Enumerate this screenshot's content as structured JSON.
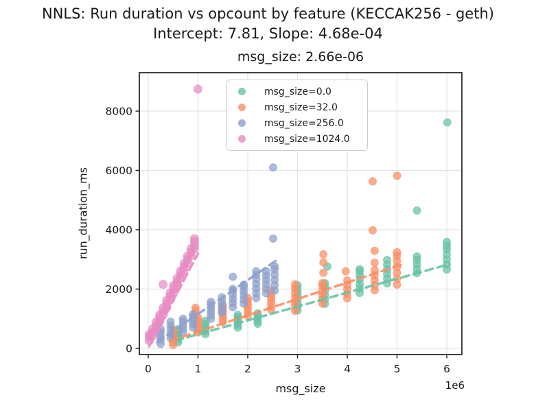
{
  "figure": {
    "suptitle_line1": "NNLS: Run duration vs opcount by feature (KECCAK256 - geth)",
    "suptitle_line2": "Intercept: 7.81, Slope: 4.68e-04",
    "axes_title": "msg_size: 2.66e-06",
    "xlabel": "msg_size",
    "ylabel": "run_duration_ms",
    "x_offset_label": "1e6",
    "background": "#ffffff",
    "grid_color": "#e3e3e3",
    "spine_color": "#2b2b2b"
  },
  "chart_data": {
    "type": "scatter",
    "title": "msg_size: 2.66e-06",
    "suptitle": "NNLS: Run duration vs opcount by feature (KECCAK256 - geth)",
    "subtitle": "Intercept: 7.81, Slope: 4.68e-04",
    "xlabel": "msg_size",
    "ylabel": "run_duration_ms",
    "x_scale_multiplier_label": "1e6",
    "grid": true,
    "legend_position": "upper-center-inside",
    "xlim": [
      -179000,
      6303000
    ],
    "ylim": [
      -208,
      9295
    ],
    "x_ticks": [
      0,
      1000000,
      2000000,
      3000000,
      4000000,
      5000000,
      6000000
    ],
    "x_tick_labels": [
      "0",
      "1",
      "2",
      "3",
      "4",
      "5",
      "6"
    ],
    "y_ticks": [
      0,
      2000,
      4000,
      6000,
      8000
    ],
    "y_tick_labels": [
      "0",
      "2000",
      "4000",
      "6000",
      "8000"
    ],
    "series": [
      {
        "name": "msg_size=0.0",
        "color": "#66c2a5",
        "marker_radius": 5.5,
        "trend": {
          "x": [
            550000,
            6050000
          ],
          "y": [
            265,
            2839
          ]
        },
        "points": [
          [
            600000,
            200
          ],
          [
            600000,
            290
          ],
          [
            600000,
            380
          ],
          [
            600000,
            470
          ],
          [
            600000,
            560
          ],
          [
            600000,
            650
          ],
          [
            1150000,
            480
          ],
          [
            1150000,
            570
          ],
          [
            1150000,
            660
          ],
          [
            1150000,
            750
          ],
          [
            1150000,
            840
          ],
          [
            1150000,
            930
          ],
          [
            1800000,
            700
          ],
          [
            1800000,
            790
          ],
          [
            1800000,
            880
          ],
          [
            1800000,
            970
          ],
          [
            1800000,
            1060
          ],
          [
            1800000,
            1130
          ],
          [
            2200000,
            830
          ],
          [
            2200000,
            920
          ],
          [
            2200000,
            1010
          ],
          [
            2200000,
            1100
          ],
          [
            2200000,
            1180
          ],
          [
            3000000,
            1280
          ],
          [
            3000000,
            1400
          ],
          [
            3000000,
            1520
          ],
          [
            3000000,
            1650
          ],
          [
            3000000,
            1780
          ],
          [
            3000000,
            1900
          ],
          [
            3000000,
            2020
          ],
          [
            3000000,
            2130
          ],
          [
            3550000,
            1500
          ],
          [
            3550000,
            1650
          ],
          [
            3550000,
            1800
          ],
          [
            3550000,
            1950
          ],
          [
            3550000,
            2100
          ],
          [
            3550000,
            2200
          ],
          [
            3600000,
            2760
          ],
          [
            4250000,
            1870
          ],
          [
            4250000,
            2020
          ],
          [
            4250000,
            2170
          ],
          [
            4250000,
            2320
          ],
          [
            4250000,
            2470
          ],
          [
            4250000,
            2600
          ],
          [
            4250000,
            2670
          ],
          [
            4800000,
            2190
          ],
          [
            4800000,
            2350
          ],
          [
            4800000,
            2510
          ],
          [
            4800000,
            2670
          ],
          [
            4800000,
            2830
          ],
          [
            4800000,
            2980
          ],
          [
            5400000,
            2540
          ],
          [
            5400000,
            2690
          ],
          [
            5400000,
            2840
          ],
          [
            5400000,
            2990
          ],
          [
            5400000,
            3100
          ],
          [
            5400000,
            4650
          ],
          [
            6000000,
            2660
          ],
          [
            6000000,
            2830
          ],
          [
            6000000,
            3000
          ],
          [
            6000000,
            3170
          ],
          [
            6000000,
            3340
          ],
          [
            6000000,
            3460
          ],
          [
            6000000,
            3590
          ],
          [
            6010000,
            7620
          ]
        ]
      },
      {
        "name": "msg_size=32.0",
        "color": "#fc8d62",
        "marker_radius": 5.5,
        "trend": {
          "x": [
            450000,
            5100000
          ],
          "y": [
            257,
            2828
          ]
        },
        "points": [
          [
            500000,
            115
          ],
          [
            500000,
            200
          ],
          [
            500000,
            290
          ],
          [
            500000,
            380
          ],
          [
            500000,
            470
          ],
          [
            500000,
            560
          ],
          [
            500000,
            640
          ],
          [
            1000000,
            540
          ],
          [
            1000000,
            640
          ],
          [
            1000000,
            740
          ],
          [
            1000000,
            840
          ],
          [
            1000000,
            940
          ],
          [
            1000000,
            1040
          ],
          [
            950000,
            1150
          ],
          [
            950000,
            1260
          ],
          [
            950000,
            1370
          ],
          [
            1500000,
            900
          ],
          [
            1500000,
            1010
          ],
          [
            1500000,
            1120
          ],
          [
            1500000,
            1230
          ],
          [
            1500000,
            1340
          ],
          [
            1500000,
            1450
          ],
          [
            2000000,
            1100
          ],
          [
            2000000,
            1220
          ],
          [
            2000000,
            1340
          ],
          [
            2000000,
            1460
          ],
          [
            2000000,
            1580
          ],
          [
            2000000,
            1700
          ],
          [
            2470000,
            1300
          ],
          [
            2470000,
            1430
          ],
          [
            2470000,
            1560
          ],
          [
            2470000,
            1690
          ],
          [
            2470000,
            1820
          ],
          [
            2470000,
            1950
          ],
          [
            2950000,
            1270
          ],
          [
            2950000,
            1420
          ],
          [
            2950000,
            1570
          ],
          [
            2950000,
            1720
          ],
          [
            2950000,
            1870
          ],
          [
            2950000,
            2020
          ],
          [
            2950000,
            2160
          ],
          [
            3500000,
            1510
          ],
          [
            3500000,
            1660
          ],
          [
            3500000,
            1810
          ],
          [
            3500000,
            1960
          ],
          [
            3500000,
            2110
          ],
          [
            3500000,
            2200
          ],
          [
            3520000,
            2550
          ],
          [
            3520000,
            2900
          ],
          [
            3520000,
            3170
          ],
          [
            4000000,
            1690
          ],
          [
            4000000,
            1840
          ],
          [
            4000000,
            1990
          ],
          [
            4000000,
            2140
          ],
          [
            4000000,
            2290
          ],
          [
            3970000,
            2600
          ],
          [
            4550000,
            1960
          ],
          [
            4550000,
            2130
          ],
          [
            4550000,
            2300
          ],
          [
            4550000,
            2470
          ],
          [
            4550000,
            2640
          ],
          [
            4550000,
            2890
          ],
          [
            4550000,
            3290
          ],
          [
            4510000,
            3980
          ],
          [
            4510000,
            5630
          ],
          [
            5000000,
            2150
          ],
          [
            5000000,
            2350
          ],
          [
            5000000,
            2550
          ],
          [
            5000000,
            2750
          ],
          [
            5000000,
            2950
          ],
          [
            5000000,
            3120
          ],
          [
            5000000,
            3240
          ],
          [
            5000000,
            5820
          ]
        ]
      },
      {
        "name": "msg_size=256.0",
        "color": "#8da0cb",
        "marker_radius": 5.5,
        "trend": {
          "x": [
            180000,
            2620000
          ],
          "y": [
            215,
            3018
          ]
        },
        "points": [
          [
            250000,
            150
          ],
          [
            250000,
            280
          ],
          [
            250000,
            410
          ],
          [
            250000,
            540
          ],
          [
            250000,
            650
          ],
          [
            450000,
            350
          ],
          [
            450000,
            490
          ],
          [
            450000,
            630
          ],
          [
            450000,
            770
          ],
          [
            450000,
            900
          ],
          [
            700000,
            550
          ],
          [
            700000,
            670
          ],
          [
            700000,
            790
          ],
          [
            700000,
            910
          ],
          [
            700000,
            1000
          ],
          [
            900000,
            700
          ],
          [
            900000,
            820
          ],
          [
            900000,
            940
          ],
          [
            900000,
            1060
          ],
          [
            900000,
            1150
          ],
          [
            1260000,
            1000
          ],
          [
            1260000,
            1120
          ],
          [
            1260000,
            1240
          ],
          [
            1260000,
            1360
          ],
          [
            1260000,
            1480
          ],
          [
            1260000,
            1570
          ],
          [
            1480000,
            1200
          ],
          [
            1480000,
            1330
          ],
          [
            1480000,
            1460
          ],
          [
            1480000,
            1590
          ],
          [
            1480000,
            1720
          ],
          [
            1700000,
            1390
          ],
          [
            1700000,
            1530
          ],
          [
            1700000,
            1670
          ],
          [
            1700000,
            1810
          ],
          [
            1700000,
            1950
          ],
          [
            1700000,
            2000
          ],
          [
            1700000,
            2415
          ],
          [
            1920000,
            1510
          ],
          [
            1920000,
            1650
          ],
          [
            1920000,
            1790
          ],
          [
            1920000,
            1930
          ],
          [
            1920000,
            2070
          ],
          [
            1920000,
            2150
          ],
          [
            2170000,
            1700
          ],
          [
            2170000,
            1860
          ],
          [
            2170000,
            2020
          ],
          [
            2170000,
            2180
          ],
          [
            2170000,
            2340
          ],
          [
            2170000,
            2480
          ],
          [
            2170000,
            2600
          ],
          [
            2370000,
            1860
          ],
          [
            2370000,
            2010
          ],
          [
            2370000,
            2160
          ],
          [
            2370000,
            2310
          ],
          [
            2370000,
            2460
          ],
          [
            2370000,
            2600
          ],
          [
            2540000,
            1950
          ],
          [
            2540000,
            2130
          ],
          [
            2540000,
            2310
          ],
          [
            2540000,
            2490
          ],
          [
            2540000,
            2670
          ],
          [
            2540000,
            2770
          ],
          [
            2510000,
            3700
          ],
          [
            2510000,
            6100
          ]
        ]
      },
      {
        "name": "msg_size=1024.0",
        "color": "#e78ac3",
        "marker_radius": 6,
        "trend": {
          "x": [
            20000,
            1000000
          ],
          "y": [
            72,
            3200
          ]
        },
        "points": [
          [
            20000,
            260
          ],
          [
            20000,
            380
          ],
          [
            20000,
            470
          ],
          [
            90000,
            420
          ],
          [
            90000,
            540
          ],
          [
            90000,
            660
          ],
          [
            160000,
            650
          ],
          [
            160000,
            770
          ],
          [
            160000,
            890
          ],
          [
            230000,
            890
          ],
          [
            230000,
            1010
          ],
          [
            230000,
            1130
          ],
          [
            300000,
            1130
          ],
          [
            300000,
            1250
          ],
          [
            300000,
            1370
          ],
          [
            370000,
            1380
          ],
          [
            370000,
            1500
          ],
          [
            370000,
            1620
          ],
          [
            440000,
            1630
          ],
          [
            440000,
            1750
          ],
          [
            440000,
            1870
          ],
          [
            510000,
            1880
          ],
          [
            510000,
            2000
          ],
          [
            510000,
            2120
          ],
          [
            580000,
            2120
          ],
          [
            580000,
            2240
          ],
          [
            580000,
            2360
          ],
          [
            650000,
            2370
          ],
          [
            650000,
            2490
          ],
          [
            650000,
            2610
          ],
          [
            720000,
            2620
          ],
          [
            720000,
            2740
          ],
          [
            720000,
            2860
          ],
          [
            790000,
            2870
          ],
          [
            790000,
            2990
          ],
          [
            790000,
            3110
          ],
          [
            860000,
            3120
          ],
          [
            860000,
            3240
          ],
          [
            860000,
            3360
          ],
          [
            930000,
            3360
          ],
          [
            930000,
            3480
          ],
          [
            930000,
            3600
          ],
          [
            930000,
            3700
          ],
          [
            300000,
            2160
          ],
          [
            1000000,
            8740
          ]
        ]
      }
    ]
  }
}
